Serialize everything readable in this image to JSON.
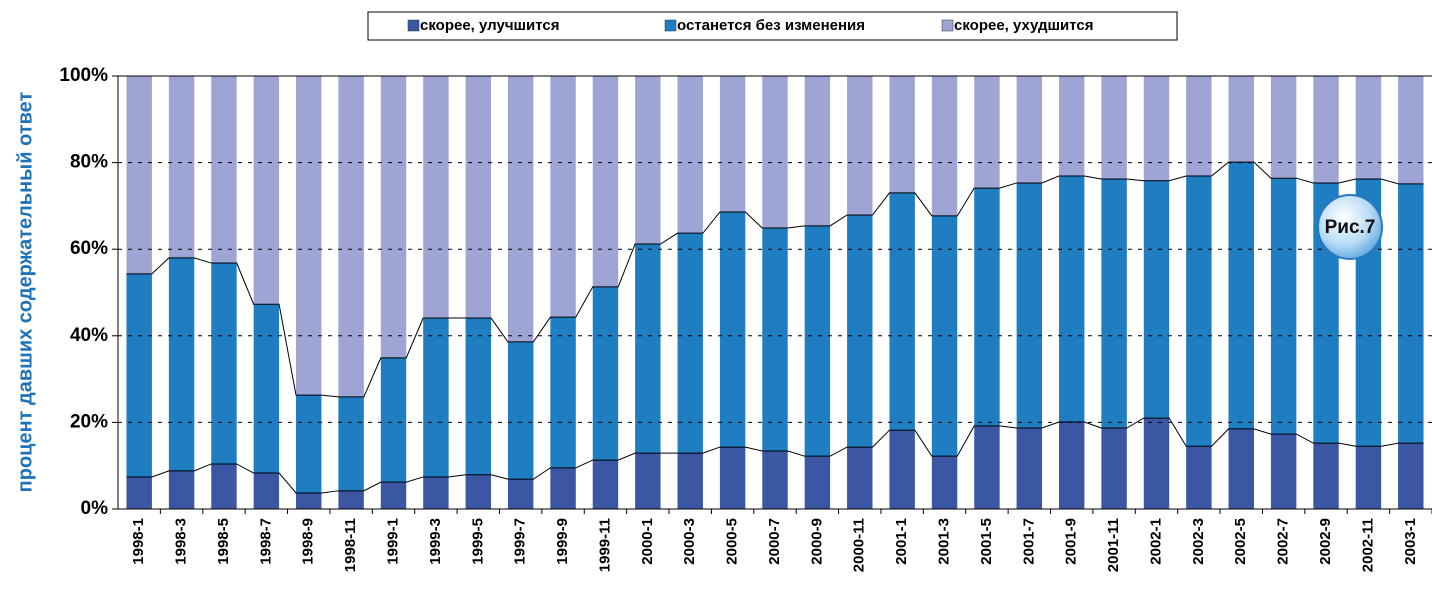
{
  "chart_data": {
    "type": "stacked_bar",
    "y_label": "процент давших содержательный ответ",
    "annotation": "Рис.7",
    "categories": [
      "1998-1",
      "1998-3",
      "1998-5",
      "1998-7",
      "1998-9",
      "1998-11",
      "1999-1",
      "1999-3",
      "1999-5",
      "1999-7",
      "1999-9",
      "1999-11",
      "2000-1",
      "2000-3",
      "2000-5",
      "2000-7",
      "2000-9",
      "2000-11",
      "2001-1",
      "2001-3",
      "2001-5",
      "2001-7",
      "2001-9",
      "2001-11",
      "2002-1",
      "2002-3",
      "2002-5",
      "2002-7",
      "2002-9",
      "2002-11",
      "2003-1"
    ],
    "series": [
      {
        "name": "скорее, улучшится",
        "color": "#3b56a2",
        "values": [
          7.4,
          8.8,
          10.4,
          8.3,
          3.7,
          4.2,
          6.2,
          7.4,
          7.9,
          6.9,
          9.5,
          11.3,
          12.9,
          12.9,
          14.3,
          13.4,
          12.2,
          14.3,
          18.2,
          12.2,
          19.2,
          18.7,
          20.1,
          18.7,
          21.0,
          14.5,
          18.5,
          17.3,
          15.2,
          14.5,
          15.2
        ]
      },
      {
        "name": "останется без изменения",
        "color": "#1f7dc1",
        "values": [
          46.9,
          49.2,
          46.4,
          39.0,
          22.6,
          21.7,
          28.7,
          36.7,
          36.2,
          31.7,
          34.8,
          40.0,
          48.3,
          50.8,
          54.3,
          51.5,
          53.2,
          53.6,
          54.8,
          55.5,
          54.9,
          56.6,
          56.8,
          57.5,
          54.8,
          62.4,
          61.6,
          59.1,
          60.1,
          61.7,
          59.9
        ]
      },
      {
        "name": "скорее, ухудшится",
        "color": "#9ea5d5",
        "values": [
          45.7,
          42.0,
          43.2,
          52.7,
          73.7,
          74.1,
          65.1,
          55.9,
          55.9,
          61.4,
          55.7,
          48.7,
          38.8,
          36.3,
          31.4,
          35.1,
          34.6,
          32.1,
          27.0,
          32.3,
          25.9,
          24.7,
          23.1,
          23.8,
          24.2,
          23.1,
          19.9,
          23.6,
          24.7,
          23.8,
          24.9
        ]
      }
    ],
    "ylim": [
      0,
      100
    ],
    "yticks": [
      {
        "value": 0,
        "label": "0%"
      },
      {
        "value": 20,
        "label": "20%"
      },
      {
        "value": 40,
        "label": "40%"
      },
      {
        "value": 60,
        "label": "60%"
      },
      {
        "value": 80,
        "label": "80%"
      },
      {
        "value": 100,
        "label": "100%"
      }
    ],
    "grid": true
  }
}
